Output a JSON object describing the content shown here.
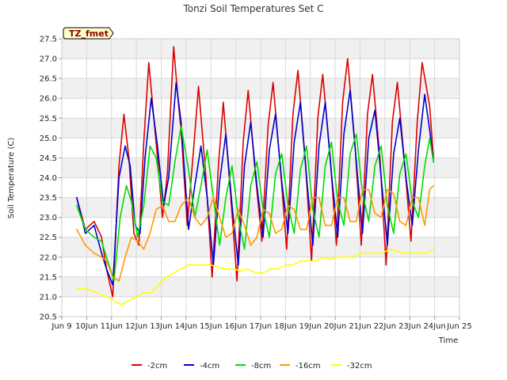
{
  "chart_data": {
    "type": "line",
    "title": "Tonzi Soil Temperatures Set C",
    "xlabel": "Time",
    "ylabel": "Soil Temperature (C)",
    "badge": "TZ_fmet",
    "xlim": [
      9,
      25
    ],
    "ylim": [
      20.5,
      27.5
    ],
    "x_ticks": [
      9,
      10,
      11,
      12,
      13,
      14,
      15,
      16,
      17,
      18,
      19,
      20,
      21,
      22,
      23,
      24,
      25
    ],
    "x_tick_labels": [
      "Jun 9",
      "10Jun",
      "11Jun",
      "12Jun",
      "13Jun",
      "14Jun",
      "15Jun",
      "16Jun",
      "17Jun",
      "18Jun",
      "19Jun",
      "20Jun",
      "21Jun",
      "22Jun",
      "23Jun",
      "24Jun",
      "Jun 25"
    ],
    "y_ticks": [
      20.5,
      21.0,
      21.5,
      22.0,
      22.5,
      23.0,
      23.5,
      24.0,
      24.5,
      25.0,
      25.5,
      26.0,
      26.5,
      27.0,
      27.5
    ],
    "y_tick_labels": [
      "20.5",
      "21.0",
      "21.5",
      "22.0",
      "22.5",
      "23.0",
      "23.5",
      "24.0",
      "24.5",
      "25.0",
      "25.5",
      "26.0",
      "26.5",
      "27.0",
      "27.5"
    ],
    "grid": true,
    "legend_position": "bottom",
    "series": [
      {
        "name": "-2cm",
        "color": "#dd0000",
        "x": [
          9.6,
          9.95,
          10.3,
          10.6,
          10.8,
          11.05,
          11.3,
          11.5,
          11.7,
          11.9,
          12.1,
          12.3,
          12.5,
          12.85,
          13.05,
          13.25,
          13.5,
          13.7,
          13.8,
          14.05,
          14.3,
          14.5,
          14.8,
          15.05,
          15.3,
          15.5,
          15.8,
          16.05,
          16.3,
          16.5,
          16.8,
          17.05,
          17.3,
          17.5,
          17.8,
          18.05,
          18.3,
          18.5,
          18.8,
          19.05,
          19.3,
          19.5,
          19.8,
          20.05,
          20.3,
          20.5,
          20.8,
          21.05,
          21.3,
          21.5,
          21.8,
          22.05,
          22.3,
          22.5,
          22.8,
          23.05,
          23.3,
          23.5,
          23.8,
          23.95
        ],
        "values": [
          23.5,
          22.7,
          22.9,
          22.5,
          21.7,
          21.0,
          24.3,
          25.6,
          24.5,
          22.6,
          22.3,
          24.9,
          26.9,
          24.5,
          23.0,
          24.1,
          27.3,
          25.8,
          25.2,
          22.8,
          24.7,
          26.3,
          24.0,
          21.5,
          24.3,
          25.9,
          23.5,
          21.4,
          24.9,
          26.2,
          24.0,
          22.4,
          25.3,
          26.4,
          24.2,
          22.2,
          25.6,
          26.7,
          24.4,
          21.9,
          25.5,
          26.6,
          24.5,
          22.3,
          25.9,
          27.0,
          24.8,
          22.3,
          25.6,
          26.6,
          24.5,
          21.8,
          25.4,
          26.4,
          24.3,
          22.4,
          25.4,
          26.9,
          25.8,
          24.5
        ]
      },
      {
        "name": "-4cm",
        "color": "#0000cc",
        "x": [
          9.6,
          9.95,
          10.3,
          10.6,
          10.8,
          11.05,
          11.3,
          11.55,
          11.75,
          11.95,
          12.15,
          12.35,
          12.6,
          12.85,
          13.1,
          13.3,
          13.6,
          13.8,
          14.1,
          14.35,
          14.6,
          14.85,
          15.1,
          15.35,
          15.6,
          15.85,
          16.1,
          16.35,
          16.6,
          16.85,
          17.1,
          17.35,
          17.6,
          17.85,
          18.1,
          18.35,
          18.6,
          18.85,
          19.1,
          19.35,
          19.6,
          19.85,
          20.1,
          20.35,
          20.6,
          20.85,
          21.1,
          21.35,
          21.6,
          21.85,
          22.1,
          22.35,
          22.6,
          22.85,
          23.1,
          23.35,
          23.6,
          23.8,
          23.95
        ],
        "values": [
          23.5,
          22.6,
          22.8,
          22.1,
          21.7,
          21.3,
          24.0,
          24.8,
          24.3,
          22.8,
          22.6,
          24.5,
          26.0,
          24.8,
          23.3,
          24.0,
          26.4,
          25.4,
          22.7,
          23.8,
          24.8,
          23.5,
          21.8,
          23.9,
          25.1,
          23.3,
          21.8,
          24.3,
          25.4,
          23.8,
          22.5,
          24.7,
          25.6,
          23.9,
          22.6,
          24.9,
          25.9,
          24.0,
          22.3,
          24.8,
          25.9,
          24.1,
          22.5,
          25.1,
          26.2,
          24.4,
          22.6,
          25.0,
          25.7,
          24.0,
          22.3,
          24.6,
          25.5,
          24.0,
          22.8,
          24.7,
          26.1,
          25.2,
          24.4
        ]
      },
      {
        "name": "-8cm",
        "color": "#00dd00",
        "x": [
          9.6,
          9.95,
          10.3,
          10.6,
          10.8,
          11.1,
          11.35,
          11.6,
          11.8,
          12.05,
          12.3,
          12.55,
          12.8,
          13.05,
          13.3,
          13.55,
          13.8,
          14.1,
          14.35,
          14.6,
          14.85,
          15.1,
          15.35,
          15.6,
          15.85,
          16.1,
          16.35,
          16.6,
          16.85,
          17.1,
          17.35,
          17.6,
          17.85,
          18.1,
          18.35,
          18.6,
          18.85,
          19.1,
          19.35,
          19.6,
          19.85,
          20.1,
          20.35,
          20.6,
          20.85,
          21.1,
          21.35,
          21.6,
          21.85,
          22.1,
          22.35,
          22.6,
          22.85,
          23.1,
          23.35,
          23.6,
          23.8,
          23.95
        ],
        "values": [
          23.3,
          22.7,
          22.5,
          22.4,
          22.0,
          21.4,
          23.0,
          23.8,
          23.4,
          22.5,
          23.3,
          24.8,
          24.5,
          23.4,
          23.3,
          24.4,
          25.3,
          24.2,
          23.0,
          23.8,
          24.7,
          23.5,
          22.3,
          23.5,
          24.3,
          23.0,
          22.2,
          23.8,
          24.4,
          23.2,
          22.5,
          24.1,
          24.6,
          23.3,
          22.6,
          24.2,
          24.8,
          23.2,
          22.5,
          24.3,
          24.9,
          23.4,
          22.8,
          24.6,
          25.1,
          23.6,
          22.9,
          24.3,
          24.8,
          23.3,
          22.6,
          24.1,
          24.6,
          23.4,
          23.0,
          24.3,
          25.0,
          24.4
        ]
      },
      {
        "name": "-16cm",
        "color": "#ff9900",
        "x": [
          9.6,
          9.95,
          10.3,
          10.6,
          10.8,
          11.05,
          11.3,
          11.55,
          11.8,
          12.05,
          12.3,
          12.55,
          12.8,
          13.05,
          13.3,
          13.55,
          13.8,
          14.1,
          14.35,
          14.6,
          14.85,
          15.1,
          15.35,
          15.6,
          15.85,
          16.1,
          16.35,
          16.6,
          16.85,
          17.1,
          17.35,
          17.6,
          17.85,
          18.1,
          18.35,
          18.6,
          18.85,
          19.1,
          19.35,
          19.6,
          19.85,
          20.1,
          20.35,
          20.6,
          20.85,
          21.1,
          21.35,
          21.6,
          21.85,
          22.1,
          22.35,
          22.6,
          22.85,
          23.1,
          23.35,
          23.6,
          23.8,
          23.95
        ],
        "values": [
          22.7,
          22.3,
          22.1,
          22.0,
          21.9,
          21.5,
          21.4,
          22.0,
          22.5,
          22.4,
          22.2,
          22.6,
          23.2,
          23.3,
          22.9,
          22.9,
          23.3,
          23.5,
          23.0,
          22.8,
          23.0,
          23.5,
          23.0,
          22.5,
          22.6,
          23.2,
          22.8,
          22.3,
          22.5,
          23.2,
          23.1,
          22.6,
          22.7,
          23.3,
          23.2,
          22.7,
          22.7,
          23.5,
          23.5,
          22.8,
          22.8,
          23.5,
          23.5,
          22.9,
          22.9,
          23.7,
          23.7,
          23.1,
          23.0,
          23.7,
          23.6,
          22.9,
          22.8,
          23.5,
          23.5,
          22.8,
          23.7,
          23.8
        ]
      },
      {
        "name": "-32cm",
        "color": "#ffff00",
        "x": [
          9.6,
          10.0,
          10.4,
          10.8,
          11.1,
          11.4,
          11.7,
          12.0,
          12.3,
          12.6,
          12.9,
          13.2,
          13.5,
          13.8,
          14.1,
          14.4,
          14.7,
          15.0,
          15.3,
          15.6,
          15.9,
          16.2,
          16.5,
          16.8,
          17.1,
          17.4,
          17.7,
          18.0,
          18.3,
          18.6,
          18.9,
          19.2,
          19.5,
          19.8,
          20.1,
          20.4,
          20.7,
          21.0,
          21.3,
          21.6,
          21.9,
          22.2,
          22.5,
          22.8,
          23.1,
          23.4,
          23.7,
          23.95
        ],
        "values": [
          21.2,
          21.2,
          21.1,
          21.0,
          20.9,
          20.8,
          20.9,
          21.0,
          21.1,
          21.1,
          21.3,
          21.5,
          21.6,
          21.7,
          21.8,
          21.8,
          21.8,
          21.8,
          21.75,
          21.7,
          21.7,
          21.65,
          21.7,
          21.6,
          21.6,
          21.7,
          21.7,
          21.8,
          21.8,
          21.9,
          21.9,
          21.9,
          22.0,
          21.95,
          22.0,
          22.0,
          22.0,
          22.1,
          22.1,
          22.1,
          22.1,
          22.2,
          22.15,
          22.1,
          22.1,
          22.1,
          22.1,
          22.2
        ]
      }
    ]
  }
}
